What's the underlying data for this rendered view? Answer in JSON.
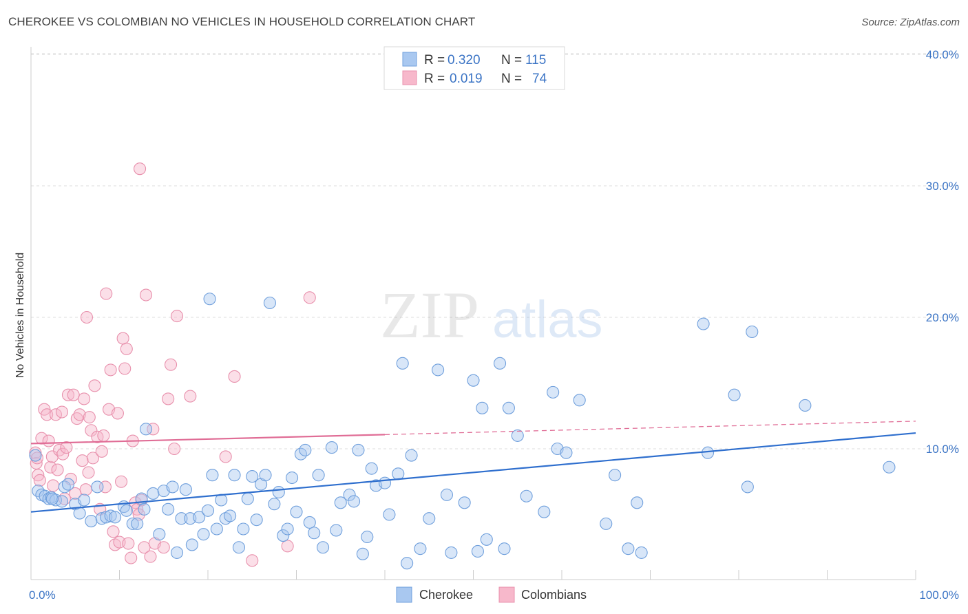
{
  "title": "CHEROKEE VS COLOMBIAN NO VEHICLES IN HOUSEHOLD CORRELATION CHART",
  "source": "Source: ZipAtlas.com",
  "watermark": {
    "zip": "ZIP",
    "atlas": "atlas"
  },
  "legend": {
    "rows": [
      {
        "r_label": "R =",
        "r_value": "0.320",
        "n_label": "N =",
        "n_value": "115"
      },
      {
        "r_label": "R =",
        "r_value": "0.019",
        "n_label": "N =",
        "n_value": "74"
      }
    ]
  },
  "colors": {
    "cherokee_fill": "#a9c8f0",
    "cherokee_stroke": "#6f9fdc",
    "cherokee_line": "#2f6fce",
    "colombian_fill": "#f7b8cb",
    "colombian_stroke": "#e890ac",
    "colombian_line": "#e06d96",
    "tick_label": "#3b74c5",
    "grid": "#dddddd"
  },
  "chart_data": {
    "type": "scatter",
    "ylabel": "No Vehicles in Household",
    "x_tick_labels": [
      "0.0%",
      "100.0%"
    ],
    "y_tick_labels": [
      "10.0%",
      "20.0%",
      "30.0%",
      "40.0%"
    ],
    "y_ticks": [
      10,
      20,
      30,
      40
    ],
    "xlim": [
      0,
      100
    ],
    "ylim": [
      0,
      41
    ],
    "grid": true,
    "series": [
      {
        "name": "Cherokee",
        "r": 0.32,
        "n": 115,
        "trend": {
          "x": [
            0,
            100
          ],
          "y": [
            5.2,
            11.2
          ],
          "dashed_from": null
        },
        "points": [
          [
            0.5,
            9.5
          ],
          [
            0.8,
            6.8
          ],
          [
            1.2,
            6.5
          ],
          [
            1.6,
            6.4
          ],
          [
            2.0,
            6.2
          ],
          [
            2.3,
            6.3
          ],
          [
            2.8,
            6.1
          ],
          [
            3.5,
            6.0
          ],
          [
            3.8,
            7.1
          ],
          [
            4.2,
            7.3
          ],
          [
            5.0,
            5.8
          ],
          [
            5.5,
            5.1
          ],
          [
            6.0,
            6.1
          ],
          [
            6.8,
            4.5
          ],
          [
            7.5,
            7.1
          ],
          [
            8.0,
            4.7
          ],
          [
            8.5,
            4.8
          ],
          [
            9.0,
            4.9
          ],
          [
            9.5,
            4.8
          ],
          [
            10.5,
            5.6
          ],
          [
            10.8,
            5.3
          ],
          [
            11.5,
            4.3
          ],
          [
            12.0,
            4.3
          ],
          [
            12.5,
            6.2
          ],
          [
            13.0,
            11.5
          ],
          [
            12.8,
            5.4
          ],
          [
            13.8,
            6.6
          ],
          [
            14.5,
            3.5
          ],
          [
            15.0,
            6.8
          ],
          [
            15.5,
            5.4
          ],
          [
            16.0,
            7.1
          ],
          [
            16.5,
            2.1
          ],
          [
            17.0,
            4.7
          ],
          [
            17.5,
            6.9
          ],
          [
            18.0,
            4.7
          ],
          [
            18.2,
            2.7
          ],
          [
            19.0,
            4.8
          ],
          [
            19.5,
            3.5
          ],
          [
            20.0,
            5.3
          ],
          [
            20.2,
            21.4
          ],
          [
            20.5,
            8.0
          ],
          [
            21.0,
            3.9
          ],
          [
            21.5,
            6.1
          ],
          [
            22.0,
            4.7
          ],
          [
            22.5,
            4.9
          ],
          [
            23.0,
            8.0
          ],
          [
            23.5,
            2.5
          ],
          [
            24.0,
            3.9
          ],
          [
            24.5,
            6.2
          ],
          [
            25.0,
            7.9
          ],
          [
            25.5,
            4.6
          ],
          [
            26.0,
            7.3
          ],
          [
            26.5,
            8.0
          ],
          [
            27.0,
            21.1
          ],
          [
            27.5,
            5.8
          ],
          [
            28.0,
            6.7
          ],
          [
            28.5,
            3.4
          ],
          [
            29.0,
            3.9
          ],
          [
            29.5,
            7.8
          ],
          [
            30.0,
            5.2
          ],
          [
            30.5,
            9.6
          ],
          [
            31.0,
            9.9
          ],
          [
            31.5,
            4.4
          ],
          [
            32.0,
            3.6
          ],
          [
            32.5,
            8.0
          ],
          [
            33.0,
            2.5
          ],
          [
            34.0,
            10.1
          ],
          [
            34.5,
            3.8
          ],
          [
            35.0,
            5.9
          ],
          [
            36.0,
            6.5
          ],
          [
            36.5,
            6.0
          ],
          [
            37.0,
            9.9
          ],
          [
            37.5,
            2.0
          ],
          [
            38.0,
            3.3
          ],
          [
            38.5,
            8.5
          ],
          [
            39.0,
            7.2
          ],
          [
            40.0,
            7.4
          ],
          [
            40.5,
            5.0
          ],
          [
            41.5,
            8.1
          ],
          [
            42.0,
            16.5
          ],
          [
            42.5,
            1.3
          ],
          [
            43.0,
            9.5
          ],
          [
            44.0,
            2.4
          ],
          [
            45.0,
            4.7
          ],
          [
            46.0,
            16.0
          ],
          [
            47.0,
            6.5
          ],
          [
            47.5,
            2.1
          ],
          [
            49.0,
            5.9
          ],
          [
            50.0,
            15.2
          ],
          [
            50.5,
            2.2
          ],
          [
            51.0,
            13.1
          ],
          [
            51.5,
            3.1
          ],
          [
            53.0,
            16.5
          ],
          [
            53.5,
            2.4
          ],
          [
            54.0,
            13.1
          ],
          [
            55.0,
            11.0
          ],
          [
            56.0,
            6.4
          ],
          [
            58.0,
            5.2
          ],
          [
            59.0,
            14.3
          ],
          [
            59.5,
            10.0
          ],
          [
            60.5,
            9.7
          ],
          [
            62.0,
            13.7
          ],
          [
            65.0,
            4.3
          ],
          [
            66.0,
            8.0
          ],
          [
            67.5,
            2.4
          ],
          [
            69.0,
            2.1
          ],
          [
            68.5,
            5.9
          ],
          [
            76.0,
            19.5
          ],
          [
            76.5,
            9.7
          ],
          [
            79.5,
            14.1
          ],
          [
            81.0,
            7.1
          ],
          [
            81.5,
            18.9
          ],
          [
            87.5,
            13.3
          ],
          [
            97.0,
            8.6
          ],
          [
            2.4,
            6.2
          ]
        ]
      },
      {
        "name": "Colombians",
        "r": 0.019,
        "n": 74,
        "trend": {
          "x": [
            0,
            100
          ],
          "y": [
            10.4,
            12.1
          ],
          "dashed_from": 40
        },
        "points": [
          [
            0.5,
            9.7
          ],
          [
            0.6,
            8.9
          ],
          [
            0.8,
            8.0
          ],
          [
            1.0,
            7.6
          ],
          [
            1.2,
            10.8
          ],
          [
            1.5,
            13.0
          ],
          [
            1.8,
            12.6
          ],
          [
            2.0,
            10.6
          ],
          [
            2.2,
            8.6
          ],
          [
            2.4,
            9.4
          ],
          [
            2.5,
            7.2
          ],
          [
            2.8,
            12.6
          ],
          [
            3.0,
            8.4
          ],
          [
            3.2,
            9.9
          ],
          [
            3.5,
            12.8
          ],
          [
            3.6,
            9.6
          ],
          [
            3.8,
            6.2
          ],
          [
            4.0,
            10.1
          ],
          [
            4.2,
            14.1
          ],
          [
            4.5,
            7.7
          ],
          [
            4.8,
            14.1
          ],
          [
            5.0,
            6.6
          ],
          [
            5.2,
            12.3
          ],
          [
            5.5,
            12.6
          ],
          [
            5.8,
            9.1
          ],
          [
            6.0,
            13.8
          ],
          [
            6.2,
            6.9
          ],
          [
            6.3,
            20.0
          ],
          [
            6.5,
            8.2
          ],
          [
            6.6,
            12.4
          ],
          [
            6.8,
            11.4
          ],
          [
            7.0,
            9.3
          ],
          [
            7.2,
            14.8
          ],
          [
            7.5,
            10.9
          ],
          [
            7.8,
            5.4
          ],
          [
            8.0,
            9.8
          ],
          [
            8.2,
            11.0
          ],
          [
            8.4,
            7.1
          ],
          [
            8.5,
            21.8
          ],
          [
            8.8,
            13.0
          ],
          [
            9.0,
            16.0
          ],
          [
            9.3,
            3.7
          ],
          [
            9.5,
            2.7
          ],
          [
            9.8,
            12.7
          ],
          [
            10.0,
            2.9
          ],
          [
            10.2,
            7.5
          ],
          [
            10.4,
            18.4
          ],
          [
            10.6,
            16.1
          ],
          [
            10.8,
            17.6
          ],
          [
            11.0,
            2.8
          ],
          [
            11.3,
            1.7
          ],
          [
            11.5,
            10.6
          ],
          [
            11.8,
            5.9
          ],
          [
            12.0,
            5.4
          ],
          [
            12.3,
            31.3
          ],
          [
            12.5,
            6.1
          ],
          [
            12.8,
            2.5
          ],
          [
            13.0,
            21.7
          ],
          [
            13.5,
            1.8
          ],
          [
            13.8,
            11.5
          ],
          [
            14.0,
            2.8
          ],
          [
            15.0,
            2.5
          ],
          [
            15.5,
            13.8
          ],
          [
            15.8,
            16.4
          ],
          [
            16.2,
            10.0
          ],
          [
            16.5,
            20.1
          ],
          [
            18.0,
            14.0
          ],
          [
            22.0,
            9.4
          ],
          [
            25.0,
            1.5
          ],
          [
            29.0,
            2.6
          ],
          [
            31.5,
            21.5
          ],
          [
            23.0,
            15.5
          ],
          [
            12.2,
            5.0
          ],
          [
            0.7,
            9.3
          ]
        ]
      }
    ]
  },
  "bottom_legend": [
    {
      "label": "Cherokee"
    },
    {
      "label": "Colombians"
    }
  ]
}
